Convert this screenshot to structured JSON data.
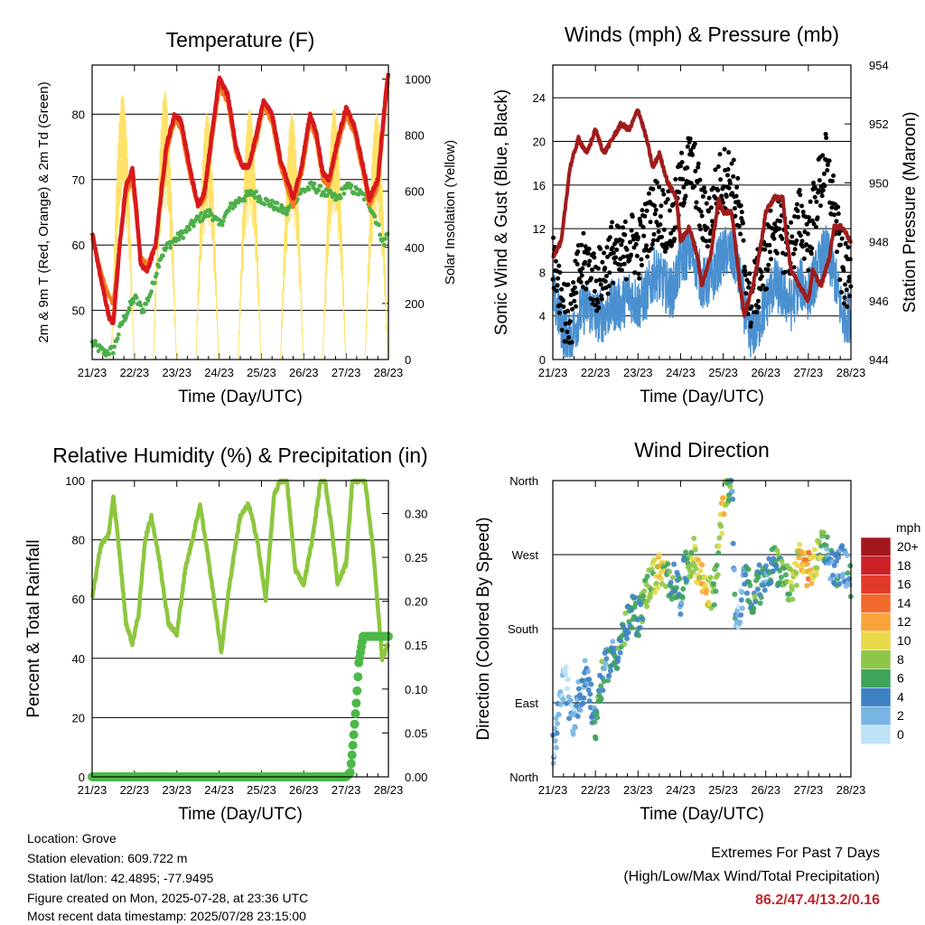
{
  "chart_data": [
    {
      "id": "temp",
      "type": "line",
      "title": "Temperature (F)",
      "xlabel": "Time (Day/UTC)",
      "ylabel": "2m & 9m T (Red, Orange) & 2m Td (Green)",
      "ylabel_right": "Solar Insolation (Yellow)",
      "xticks": [
        "21/23",
        "22/23",
        "23/23",
        "24/23",
        "25/23",
        "26/23",
        "27/23",
        "28/23"
      ],
      "ylim": [
        42.5,
        87.5
      ],
      "yticks": [
        50,
        60,
        70,
        80
      ],
      "ylim_right": [
        0,
        1050
      ],
      "yticks_right": [
        0,
        200,
        400,
        600,
        800,
        1000
      ],
      "grid": true,
      "series": [
        {
          "name": "2m T",
          "color": "#d7191c",
          "x": [
            0,
            0.2,
            0.4,
            0.5,
            0.65,
            0.8,
            0.95,
            1.05,
            1.15,
            1.3,
            1.5,
            1.75,
            1.95,
            2.1,
            2.3,
            2.5,
            2.65,
            2.85,
            3.0,
            3.2,
            3.4,
            3.55,
            3.7,
            3.85,
            4.05,
            4.25,
            4.45,
            4.6,
            4.75,
            4.95,
            5.15,
            5.3,
            5.45,
            5.6,
            5.8,
            6.0,
            6.2,
            6.4,
            6.55,
            6.75,
            6.95,
            7.0
          ],
          "values": [
            62,
            55,
            49,
            48,
            60,
            69,
            71.5,
            65,
            57,
            56,
            60,
            75,
            80,
            79,
            72,
            66,
            68,
            78,
            85.5,
            83,
            75,
            72,
            72,
            76,
            82,
            80,
            73,
            70,
            67,
            72,
            80,
            77,
            71,
            70,
            76,
            81,
            78,
            72,
            67,
            70,
            84,
            86
          ]
        },
        {
          "name": "9m T",
          "color": "#f47b1f",
          "x": [
            0,
            0.2,
            0.4,
            0.5,
            0.65,
            0.8,
            0.95,
            1.05,
            1.15,
            1.3,
            1.5,
            1.75,
            1.95,
            2.1,
            2.3,
            2.5,
            2.65,
            2.85,
            3.0,
            3.2,
            3.4,
            3.55,
            3.7,
            3.85,
            4.05,
            4.25,
            4.45,
            4.6,
            4.75,
            4.95,
            5.15,
            5.3,
            5.45,
            5.6,
            5.8,
            6.0,
            6.2,
            6.4,
            6.55,
            6.75,
            6.95,
            7.0
          ],
          "values": [
            61,
            56,
            52,
            51,
            60,
            68,
            70,
            64,
            58,
            57,
            60,
            74,
            79,
            78,
            71,
            66,
            67,
            77,
            84,
            82,
            74,
            72,
            72,
            75,
            81,
            79,
            72,
            69,
            66,
            71,
            79,
            76,
            70,
            69,
            75,
            80,
            77,
            71,
            66,
            69,
            83,
            85
          ]
        },
        {
          "name": "2m Td",
          "color": "#4daf4a",
          "x": [
            0,
            0.3,
            0.5,
            0.7,
            1.0,
            1.2,
            1.4,
            1.6,
            1.8,
            2.0,
            2.2,
            2.5,
            2.8,
            3.0,
            3.3,
            3.5,
            3.8,
            4.0,
            4.3,
            4.6,
            4.9,
            5.2,
            5.5,
            5.8,
            6.0,
            6.3,
            6.5,
            6.7,
            6.9,
            7.0
          ],
          "values": [
            45,
            43.5,
            44,
            48,
            52,
            50,
            53,
            58,
            60,
            61,
            62,
            64,
            65,
            63,
            66,
            67,
            68,
            67,
            66,
            65,
            68,
            69,
            68,
            67,
            69,
            68,
            67,
            64,
            60,
            63
          ]
        },
        {
          "name": "Solar Insolation",
          "color": "#ffe26a",
          "axis": "right",
          "peaks": [
            0.72,
            1.72,
            2.72,
            3.72,
            4.72,
            5.72,
            6.72
          ],
          "peak_values": [
            950,
            960,
            880,
            900,
            880,
            900,
            880
          ]
        }
      ]
    },
    {
      "id": "wind",
      "type": "scatter",
      "title": "Winds (mph) & Pressure (mb)",
      "xlabel": "Time (Day/UTC)",
      "ylabel": "Sonic Wind & Gust (Blue, Black)",
      "ylabel_right": "Station Pressure (Maroon)",
      "xticks": [
        "21/23",
        "22/23",
        "23/23",
        "24/23",
        "25/23",
        "26/23",
        "27/23",
        "28/23"
      ],
      "ylim": [
        0,
        27
      ],
      "yticks": [
        0,
        4,
        8,
        12,
        16,
        20,
        24
      ],
      "ylim_right": [
        944,
        954
      ],
      "yticks_right": [
        944,
        946,
        948,
        950,
        952,
        954
      ],
      "grid": true,
      "series": [
        {
          "name": "Gust",
          "color": "#000000",
          "x": [
            0,
            0.15,
            0.3,
            0.45,
            0.6,
            0.8,
            1.0,
            1.2,
            1.4,
            1.6,
            1.8,
            2.0,
            2.2,
            2.4,
            2.6,
            2.8,
            3.0,
            3.2,
            3.35,
            3.5,
            3.7,
            3.9,
            4.1,
            4.3,
            4.45,
            4.6,
            4.8,
            5.0,
            5.2,
            5.4,
            5.6,
            5.8,
            6.0,
            6.2,
            6.4,
            6.6,
            6.8,
            7.0
          ],
          "values": [
            10,
            7,
            4,
            4,
            8,
            9,
            7,
            8,
            10,
            9,
            11,
            10,
            12,
            14,
            13,
            12,
            16,
            18,
            17,
            13,
            13,
            16,
            17,
            15,
            11,
            5,
            7,
            9,
            13,
            11,
            10,
            13,
            11,
            15,
            18,
            14,
            8,
            7
          ]
        },
        {
          "name": "Wind",
          "color": "#4a90d0",
          "x": [
            0,
            0.15,
            0.3,
            0.45,
            0.6,
            0.8,
            1.0,
            1.2,
            1.4,
            1.6,
            1.8,
            2.0,
            2.2,
            2.4,
            2.6,
            2.8,
            3.0,
            3.2,
            3.35,
            3.5,
            3.7,
            3.9,
            4.1,
            4.3,
            4.45,
            4.6,
            4.8,
            5.0,
            5.2,
            5.4,
            5.6,
            5.8,
            6.0,
            6.2,
            6.4,
            6.6,
            6.8,
            7.0
          ],
          "values": [
            6,
            4,
            2,
            2,
            4,
            5,
            4,
            4,
            5,
            5,
            6,
            5,
            6,
            8,
            7,
            6,
            9,
            10,
            9,
            7,
            7,
            9,
            10,
            9,
            6,
            2,
            3,
            5,
            7,
            6,
            5,
            7,
            6,
            8,
            10,
            8,
            4,
            4
          ]
        },
        {
          "name": "Pressure",
          "color": "#a01c1c",
          "axis": "right",
          "x": [
            0,
            0.2,
            0.4,
            0.6,
            0.8,
            1.0,
            1.2,
            1.4,
            1.6,
            1.8,
            2.0,
            2.2,
            2.35,
            2.5,
            2.7,
            2.9,
            3.0,
            3.2,
            3.4,
            3.5,
            3.7,
            3.9,
            4.0,
            4.2,
            4.4,
            4.5,
            4.7,
            4.9,
            5.0,
            5.2,
            5.4,
            5.5,
            5.6,
            5.8,
            6.0,
            6.1,
            6.3,
            6.5,
            6.6,
            6.8,
            7.0
          ],
          "values": [
            947.5,
            948,
            950.5,
            951.5,
            951,
            951.8,
            951,
            951.5,
            952,
            951.8,
            952.5,
            951.5,
            950.5,
            951,
            950,
            949.5,
            948,
            948.5,
            947.5,
            946.5,
            947.5,
            949.5,
            949,
            949,
            946.5,
            945.5,
            946.5,
            948,
            949,
            949.5,
            949.5,
            948,
            947,
            946.5,
            946,
            947,
            946.5,
            947.5,
            948.5,
            948.5,
            948
          ]
        }
      ]
    },
    {
      "id": "rh",
      "type": "line",
      "title": "Relative Humidity (%) & Precipitation (in)",
      "xlabel": "Time (Day/UTC)",
      "ylabel": "Percent & Total Rainfall",
      "xticks": [
        "21/23",
        "22/23",
        "23/23",
        "24/23",
        "25/23",
        "26/23",
        "27/23",
        "28/23"
      ],
      "ylim": [
        0,
        100
      ],
      "yticks": [
        0,
        20,
        40,
        60,
        80,
        100
      ],
      "ylim_right": [
        0,
        0.3375
      ],
      "yticks_right": [
        "0.00",
        "0.05",
        "0.10",
        "0.15",
        "0.20",
        "0.25",
        "0.30"
      ],
      "grid": true,
      "series": [
        {
          "name": "RH",
          "color": "#8dc63f",
          "x": [
            0,
            0.2,
            0.4,
            0.5,
            0.65,
            0.8,
            0.95,
            1.1,
            1.25,
            1.4,
            1.6,
            1.8,
            2.0,
            2.2,
            2.4,
            2.55,
            2.7,
            2.9,
            3.05,
            3.2,
            3.35,
            3.5,
            3.7,
            3.9,
            4.1,
            4.3,
            4.45,
            4.6,
            4.8,
            5.0,
            5.2,
            5.4,
            5.5,
            5.65,
            5.8,
            6.0,
            6.15,
            6.3,
            6.45,
            6.65,
            6.85,
            7.0
          ],
          "values": [
            60,
            78,
            82,
            95,
            75,
            52,
            45,
            55,
            80,
            88,
            72,
            52,
            48,
            70,
            82,
            92,
            78,
            58,
            42,
            60,
            75,
            88,
            92,
            80,
            60,
            95,
            100,
            100,
            70,
            65,
            80,
            100,
            100,
            85,
            65,
            72,
            100,
            100,
            100,
            75,
            40,
            45
          ]
        },
        {
          "name": "Precipitation",
          "color": "#4cb848",
          "axis": "right",
          "x": [
            0,
            6.0,
            6.1,
            6.15,
            6.25,
            6.3,
            6.4,
            6.6,
            7.0
          ],
          "values": [
            0,
            0,
            0.005,
            0.03,
            0.09,
            0.13,
            0.16,
            0.16,
            0.16
          ]
        }
      ]
    },
    {
      "id": "dir",
      "type": "scatter",
      "title": "Wind Direction",
      "xlabel": "Time (Day/UTC)",
      "ylabel": "Direction (Colored By Speed)",
      "xticks": [
        "21/23",
        "22/23",
        "23/23",
        "24/23",
        "25/23",
        "26/23",
        "27/23",
        "28/23"
      ],
      "yticks": [
        "North",
        "East",
        "South",
        "West",
        "North"
      ],
      "ylim": [
        0,
        360
      ],
      "grid": true,
      "legend_title": "mph",
      "legend_labels": [
        "20+",
        "18",
        "16",
        "14",
        "12",
        "10",
        "8",
        "6",
        "4",
        "2",
        "0"
      ],
      "legend_colors": [
        "#a3181c",
        "#cc2127",
        "#e13a2a",
        "#f26a2b",
        "#f9a43b",
        "#e8d94a",
        "#8ec64a",
        "#3fa35c",
        "#3e82c4",
        "#79b5e3",
        "#bfe3f6"
      ],
      "series": [
        {
          "name": "Direction",
          "x": [
            0,
            0.1,
            0.2,
            0.3,
            0.4,
            0.5,
            0.6,
            0.7,
            0.8,
            0.9,
            1.0,
            1.1,
            1.3,
            1.5,
            1.7,
            1.9,
            2.0,
            2.1,
            2.3,
            2.5,
            2.7,
            2.9,
            3.0,
            3.1,
            3.3,
            3.5,
            3.7,
            3.8,
            3.9,
            4.0,
            4.1,
            4.2,
            4.3,
            4.4,
            4.5,
            4.6,
            4.7,
            4.8,
            4.9,
            5.0,
            5.2,
            5.4,
            5.6,
            5.8,
            6.0,
            6.2,
            6.3,
            6.4,
            6.6,
            6.8,
            7.0
          ],
          "values": [
            30,
            60,
            100,
            120,
            80,
            70,
            95,
            110,
            130,
            90,
            60,
            110,
            140,
            150,
            180,
            200,
            190,
            210,
            240,
            250,
            240,
            235,
            220,
            250,
            270,
            240,
            220,
            230,
            280,
            330,
            350,
            360,
            180,
            210,
            240,
            230,
            200,
            240,
            230,
            250,
            260,
            240,
            230,
            270,
            250,
            260,
            290,
            280,
            250,
            260,
            240
          ],
          "speeds": [
            2,
            2,
            1,
            1,
            2,
            2,
            3,
            4,
            3,
            4,
            5,
            6,
            4,
            5,
            6,
            5,
            5,
            6,
            8,
            10,
            7,
            5,
            4,
            5,
            8,
            11,
            9,
            7,
            9,
            11,
            8,
            5,
            3,
            2,
            4,
            5,
            5,
            6,
            5,
            4,
            5,
            6,
            8,
            10,
            12,
            9,
            7,
            5,
            4,
            3,
            4
          ]
        }
      ]
    }
  ],
  "footer": {
    "location": "Location: Grove",
    "elevation": "Station elevation: 609.722 m",
    "latlon": "Station lat/lon: 42.4895; -77.9495",
    "created": "Figure created on Mon, 2025-07-28, at 23:36 UTC",
    "recent": "Most recent data timestamp: 2025/07/28 23:15:00"
  },
  "extremes": {
    "title": "Extremes For Past 7 Days",
    "subtitle": "(High/Low/Max Wind/Total Precipitation)",
    "values": "86.2/47.4/13.2/0.16"
  }
}
